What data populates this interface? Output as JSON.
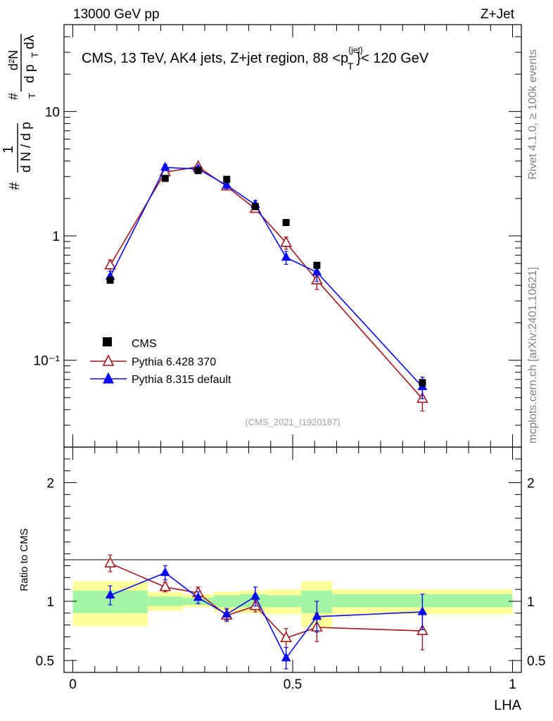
{
  "header": {
    "energy_label": "13000 GeV pp",
    "process_label": "Z+Jet"
  },
  "side_labels": {
    "rivet": "Rivet 4.1.0, ≥ 100k events",
    "mcplots": "mcplots.cern.ch [arXiv:2401.10621]"
  },
  "colors": {
    "data": "#000000",
    "pythia6": "#a1171e",
    "pythia8": "#0a0aee",
    "band_inner": "#a3f5a3",
    "band_outer": "#ffff99"
  },
  "chart_data": [
    {
      "type": "scatter",
      "title": "CMS, 13 TeV, AK4 jets, Z+jet region, 88 <p_T^{jet}< 120 GeV",
      "title_parts": {
        "main": "CMS, 13 TeV, AK4 jets, Z+jet region, 88 <p",
        "sup": "{jet}",
        "sub": "T",
        "tail": "}< 120 GeV"
      },
      "ylabel_parts": [
        "#",
        "1",
        "d N / d p",
        "T",
        "#",
        "d²N",
        "d p",
        "T",
        "dλ"
      ],
      "yscale": "log",
      "ylim": [
        0.02,
        50
      ],
      "xlim": [
        -0.02,
        1.02
      ],
      "y_ticks": [
        {
          "value": 10,
          "label": "10"
        },
        {
          "value": 1,
          "label": "1"
        },
        {
          "value": 0.1,
          "label": "10⁻¹"
        }
      ],
      "watermark": "(CMS_2021_I1920187)",
      "legend": [
        {
          "label": "CMS",
          "marker": "square"
        },
        {
          "label": "Pythia 6.428 370",
          "marker": "open-triangle"
        },
        {
          "label": "Pythia 8.315 default",
          "marker": "filled-triangle"
        }
      ],
      "series": [
        {
          "name": "CMS",
          "x": [
            0.085,
            0.21,
            0.285,
            0.35,
            0.415,
            0.485,
            0.555,
            0.795
          ],
          "y": [
            0.44,
            2.9,
            3.35,
            2.85,
            1.72,
            1.28,
            0.58,
            0.066
          ],
          "err": [
            0.02,
            0.12,
            0.12,
            0.1,
            0.06,
            0.05,
            0.03,
            0.004
          ]
        },
        {
          "name": "Pythia 6.428 370",
          "x": [
            0.085,
            0.21,
            0.285,
            0.35,
            0.415,
            0.485,
            0.555,
            0.795
          ],
          "y": [
            0.58,
            3.25,
            3.6,
            2.5,
            1.65,
            0.88,
            0.44,
            0.049
          ],
          "err": [
            0.06,
            0.15,
            0.15,
            0.15,
            0.1,
            0.1,
            0.07,
            0.01
          ]
        },
        {
          "name": "Pythia 8.315 default",
          "x": [
            0.085,
            0.21,
            0.285,
            0.35,
            0.415,
            0.485,
            0.555,
            0.795
          ],
          "y": [
            0.47,
            3.55,
            3.45,
            2.55,
            1.78,
            0.67,
            0.51,
            0.061
          ],
          "err": [
            0.05,
            0.2,
            0.15,
            0.15,
            0.15,
            0.08,
            0.08,
            0.012
          ]
        }
      ]
    },
    {
      "type": "scatter",
      "title": "",
      "ylabel": "Ratio to CMS",
      "xlabel": "LHA",
      "ylim": [
        0.4,
        2.3
      ],
      "xlim": [
        -0.02,
        1.02
      ],
      "y_ticks": [
        {
          "value": 2,
          "label": "2"
        },
        {
          "value": 1,
          "label": "1"
        },
        {
          "value": 0.5,
          "label": "0.5"
        }
      ],
      "x_ticks": [
        {
          "value": 0,
          "label": "0"
        },
        {
          "value": 0.5,
          "label": "0.5"
        },
        {
          "value": 1,
          "label": "1"
        }
      ],
      "bands": [
        {
          "x0": 0.0,
          "x1": 0.17,
          "inner": [
            0.9,
            1.09
          ],
          "outer": [
            0.79,
            1.17
          ]
        },
        {
          "x0": 0.17,
          "x1": 0.25,
          "inner": [
            0.96,
            1.04
          ],
          "outer": [
            0.92,
            1.08
          ]
        },
        {
          "x0": 0.25,
          "x1": 0.32,
          "inner": [
            0.97,
            1.03
          ],
          "outer": [
            0.95,
            1.06
          ]
        },
        {
          "x0": 0.32,
          "x1": 0.38,
          "inner": [
            0.95,
            1.05
          ],
          "outer": [
            0.91,
            1.08
          ]
        },
        {
          "x0": 0.38,
          "x1": 0.44,
          "inner": [
            0.95,
            1.06
          ],
          "outer": [
            0.9,
            1.09
          ]
        },
        {
          "x0": 0.44,
          "x1": 0.52,
          "inner": [
            0.95,
            1.05
          ],
          "outer": [
            0.89,
            1.1
          ]
        },
        {
          "x0": 0.52,
          "x1": 0.59,
          "inner": [
            0.9,
            1.09
          ],
          "outer": [
            0.78,
            1.17
          ]
        },
        {
          "x0": 0.59,
          "x1": 1.0,
          "inner": [
            0.95,
            1.06
          ],
          "outer": [
            0.89,
            1.1
          ]
        }
      ],
      "series": [
        {
          "name": "Pythia 6.428 370",
          "x": [
            0.085,
            0.21,
            0.285,
            0.35,
            0.415,
            0.485,
            0.555,
            0.795
          ],
          "y": [
            1.32,
            1.12,
            1.07,
            0.88,
            0.96,
            0.69,
            0.78,
            0.75
          ],
          "err": [
            0.07,
            0.04,
            0.05,
            0.05,
            0.05,
            0.08,
            0.12,
            0.16
          ]
        },
        {
          "name": "Pythia 8.315 default",
          "x": [
            0.085,
            0.21,
            0.285,
            0.35,
            0.415,
            0.485,
            0.555,
            0.795
          ],
          "y": [
            1.05,
            1.24,
            1.03,
            0.89,
            1.04,
            0.52,
            0.87,
            0.91
          ],
          "err": [
            0.08,
            0.06,
            0.05,
            0.05,
            0.08,
            0.09,
            0.13,
            0.15
          ]
        }
      ]
    }
  ]
}
